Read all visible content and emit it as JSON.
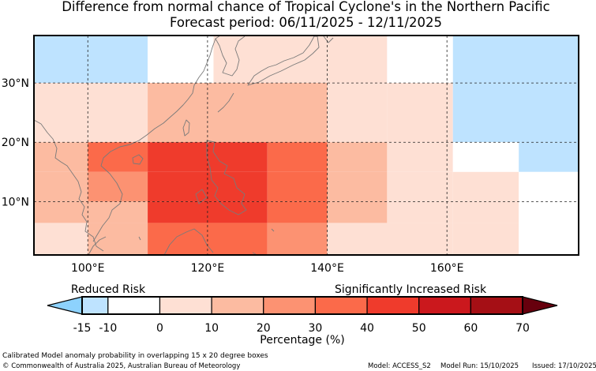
{
  "title": {
    "line1": "Difference from normal chance of Tropical Cyclone's in the Northern Pacific",
    "line2": "Forecast period: 06/11/2025 - 12/11/2025"
  },
  "map": {
    "lon_range": [
      91,
      182
    ],
    "lat_range": [
      1,
      38
    ],
    "lon_ticks": [
      100,
      120,
      140,
      160
    ],
    "lon_tick_labels": [
      "100°E",
      "120°E",
      "140°E",
      "160°E"
    ],
    "lat_ticks": [
      10,
      20,
      30
    ],
    "lat_tick_labels": [
      "10°N",
      "20°N",
      "30°N"
    ],
    "gridlines": true,
    "cells": [
      {
        "lon": [
          91,
          110
        ],
        "lat": [
          30,
          38
        ],
        "value": -12
      },
      {
        "lon": [
          110,
          121
        ],
        "lat": [
          30,
          38
        ],
        "value": -7
      },
      {
        "lon": [
          121,
          150
        ],
        "lat": [
          30,
          38
        ],
        "value": 0
      },
      {
        "lon": [
          150,
          161
        ],
        "lat": [
          30,
          38
        ],
        "value": -7
      },
      {
        "lon": [
          161,
          182
        ],
        "lat": [
          30,
          38
        ],
        "value": -12
      },
      {
        "lon": [
          91,
          100
        ],
        "lat": [
          20,
          30
        ],
        "value": 0
      },
      {
        "lon": [
          100,
          110
        ],
        "lat": [
          20,
          30
        ],
        "value": 5
      },
      {
        "lon": [
          110,
          140
        ],
        "lat": [
          20,
          30
        ],
        "value": 15
      },
      {
        "lon": [
          140,
          150
        ],
        "lat": [
          20,
          30
        ],
        "value": 5
      },
      {
        "lon": [
          150,
          161
        ],
        "lat": [
          20,
          30
        ],
        "value": 0
      },
      {
        "lon": [
          161,
          182
        ],
        "lat": [
          20,
          30
        ],
        "value": -12
      },
      {
        "lon": [
          91,
          100
        ],
        "lat": [
          15,
          20
        ],
        "value": 15
      },
      {
        "lon": [
          100,
          110
        ],
        "lat": [
          15,
          20
        ],
        "value": 35
      },
      {
        "lon": [
          110,
          130
        ],
        "lat": [
          15,
          20
        ],
        "value": 45
      },
      {
        "lon": [
          130,
          140
        ],
        "lat": [
          15,
          20
        ],
        "value": 35
      },
      {
        "lon": [
          140,
          150
        ],
        "lat": [
          15,
          20
        ],
        "value": 15
      },
      {
        "lon": [
          150,
          161
        ],
        "lat": [
          15,
          20
        ],
        "value": 0
      },
      {
        "lon": [
          161,
          172
        ],
        "lat": [
          15,
          20
        ],
        "value": -7
      },
      {
        "lon": [
          172,
          182
        ],
        "lat": [
          15,
          20
        ],
        "value": -12
      },
      {
        "lon": [
          91,
          100
        ],
        "lat": [
          10,
          15
        ],
        "value": 15
      },
      {
        "lon": [
          100,
          110
        ],
        "lat": [
          10,
          15
        ],
        "value": 25
      },
      {
        "lon": [
          110,
          130
        ],
        "lat": [
          10,
          15
        ],
        "value": 45
      },
      {
        "lon": [
          130,
          140
        ],
        "lat": [
          10,
          15
        ],
        "value": 35
      },
      {
        "lon": [
          140,
          150
        ],
        "lat": [
          10,
          15
        ],
        "value": 15
      },
      {
        "lon": [
          150,
          161
        ],
        "lat": [
          10,
          15
        ],
        "value": 5
      },
      {
        "lon": [
          161,
          172
        ],
        "lat": [
          10,
          15
        ],
        "value": 0
      },
      {
        "lon": [
          172,
          182
        ],
        "lat": [
          10,
          15
        ],
        "value": -7
      },
      {
        "lon": [
          91,
          110
        ],
        "lat": [
          6.4,
          10
        ],
        "value": 15
      },
      {
        "lon": [
          110,
          130
        ],
        "lat": [
          6.4,
          10
        ],
        "value": 45
      },
      {
        "lon": [
          130,
          140
        ],
        "lat": [
          6.4,
          10
        ],
        "value": 35
      },
      {
        "lon": [
          140,
          150
        ],
        "lat": [
          6.4,
          10
        ],
        "value": 15
      },
      {
        "lon": [
          150,
          161
        ],
        "lat": [
          6.4,
          10
        ],
        "value": 5
      },
      {
        "lon": [
          161,
          172
        ],
        "lat": [
          6.4,
          10
        ],
        "value": 0
      },
      {
        "lon": [
          172,
          182
        ],
        "lat": [
          6.4,
          10
        ],
        "value": -7
      },
      {
        "lon": [
          91,
          100
        ],
        "lat": [
          1,
          6.4
        ],
        "value": 5
      },
      {
        "lon": [
          100,
          110
        ],
        "lat": [
          1,
          6.4
        ],
        "value": 15
      },
      {
        "lon": [
          110,
          130
        ],
        "lat": [
          1,
          6.4
        ],
        "value": 35
      },
      {
        "lon": [
          130,
          140
        ],
        "lat": [
          1,
          6.4
        ],
        "value": 25
      },
      {
        "lon": [
          140,
          161
        ],
        "lat": [
          1,
          6.4
        ],
        "value": 5
      },
      {
        "lon": [
          161,
          172
        ],
        "lat": [
          1,
          6.4
        ],
        "value": 0
      },
      {
        "lon": [
          172,
          182
        ],
        "lat": [
          1,
          6.4
        ],
        "value": -7
      }
    ]
  },
  "legend": {
    "reduced_label": "Reduced Risk",
    "increased_label": "Significantly Increased Risk",
    "axis_label": "Percentage (%)",
    "tick_labels": [
      "-15",
      "-10",
      "0",
      "10",
      "20",
      "30",
      "40",
      "50",
      "60",
      "70"
    ],
    "bins": [
      {
        "min": -15,
        "max": -10,
        "color": "#bee3ff"
      },
      {
        "min": -10,
        "max": 0,
        "color": "#ffffff"
      },
      {
        "min": 0,
        "max": 10,
        "color": "#fee0d4"
      },
      {
        "min": 10,
        "max": 20,
        "color": "#fcbba1"
      },
      {
        "min": 20,
        "max": 30,
        "color": "#fc9272"
      },
      {
        "min": 30,
        "max": 40,
        "color": "#fb6a4a"
      },
      {
        "min": 40,
        "max": 50,
        "color": "#ef3b2c"
      },
      {
        "min": 50,
        "max": 60,
        "color": "#cb181d"
      },
      {
        "min": 60,
        "max": 70,
        "color": "#a50f15"
      }
    ],
    "under_color": "#8dd2fd",
    "over_color": "#67000d"
  },
  "footer": {
    "caption": "Calibrated Model anomaly probability in overlapping 15 x 20 degree boxes",
    "copyright": "© Commonwealth of Australia 2025, Australian Bureau of Meteorology",
    "model": "Model: ACCESS_S2",
    "model_run": "Model Run: 15/10/2025",
    "issued": "Issued: 17/10/2025"
  }
}
